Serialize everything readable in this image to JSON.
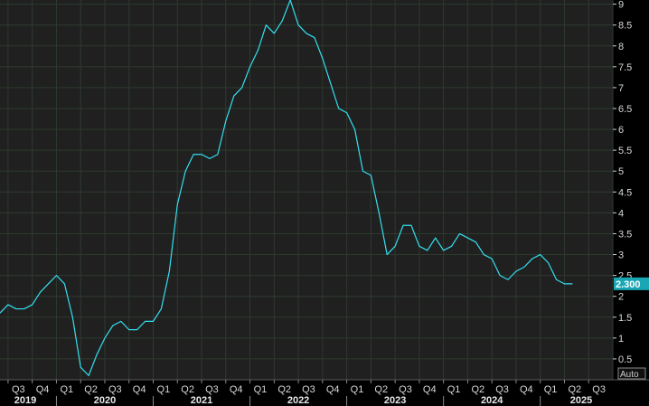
{
  "chart_data": {
    "type": "line",
    "xlabel": "",
    "ylabel": "",
    "ylim": [
      0,
      9.1
    ],
    "yticks": [
      0.5,
      1,
      1.5,
      2,
      2.5,
      3,
      3.5,
      4,
      4.5,
      5,
      5.5,
      6,
      6.5,
      7,
      7.5,
      8,
      8.5,
      9
    ],
    "ytick_labels": [
      "0.5",
      "1",
      "1.5",
      "2",
      "2.5",
      "3",
      "3.5",
      "4",
      "4.5",
      "5",
      "5.5",
      "6",
      "6.5",
      "7",
      "7.5",
      "8",
      "8.5",
      "9"
    ],
    "x_range": [
      "2019-06",
      "2025-10"
    ],
    "quarter_labels": [
      "Q3",
      "Q4",
      "Q1",
      "Q2",
      "Q3",
      "Q4",
      "Q1",
      "Q2",
      "Q3",
      "Q4",
      "Q1",
      "Q2",
      "Q3",
      "Q4",
      "Q1",
      "Q2",
      "Q3",
      "Q4",
      "Q1",
      "Q2",
      "Q3",
      "Q4",
      "Q1",
      "Q2",
      "Q3"
    ],
    "year_labels": [
      "2019",
      "2020",
      "2021",
      "2022",
      "2023",
      "2024",
      "2025"
    ],
    "grid": true,
    "series": [
      {
        "color": "#33e0f0",
        "x": [
          "2019-06",
          "2019-07",
          "2019-08",
          "2019-09",
          "2019-10",
          "2019-11",
          "2019-12",
          "2020-01",
          "2020-02",
          "2020-03",
          "2020-04",
          "2020-05",
          "2020-06",
          "2020-07",
          "2020-08",
          "2020-09",
          "2020-10",
          "2020-11",
          "2020-12",
          "2021-01",
          "2021-02",
          "2021-03",
          "2021-04",
          "2021-05",
          "2021-06",
          "2021-07",
          "2021-08",
          "2021-09",
          "2021-10",
          "2021-11",
          "2021-12",
          "2022-01",
          "2022-02",
          "2022-03",
          "2022-04",
          "2022-05",
          "2022-06",
          "2022-07",
          "2022-08",
          "2022-09",
          "2022-10",
          "2022-11",
          "2022-12",
          "2023-01",
          "2023-02",
          "2023-03",
          "2023-04",
          "2023-05",
          "2023-06",
          "2023-07",
          "2023-08",
          "2023-09",
          "2023-10",
          "2023-11",
          "2023-12",
          "2024-01",
          "2024-02",
          "2024-03",
          "2024-04",
          "2024-05",
          "2024-06",
          "2024-07",
          "2024-08",
          "2024-09",
          "2024-10",
          "2024-11",
          "2024-12",
          "2025-01",
          "2025-02",
          "2025-03",
          "2025-04",
          "2025-05"
        ],
        "values": [
          1.6,
          1.8,
          1.7,
          1.7,
          1.8,
          2.1,
          2.3,
          2.5,
          2.3,
          1.5,
          0.3,
          0.1,
          0.6,
          1.0,
          1.3,
          1.4,
          1.2,
          1.2,
          1.4,
          1.4,
          1.7,
          2.6,
          4.2,
          5.0,
          5.4,
          5.4,
          5.3,
          5.4,
          6.2,
          6.8,
          7.0,
          7.5,
          7.9,
          8.5,
          8.3,
          8.6,
          9.1,
          8.5,
          8.3,
          8.2,
          7.7,
          7.1,
          6.5,
          6.4,
          6.0,
          5.0,
          4.9,
          4.0,
          3.0,
          3.2,
          3.7,
          3.7,
          3.2,
          3.1,
          3.4,
          3.1,
          3.2,
          3.5,
          3.4,
          3.3,
          3.0,
          2.9,
          2.5,
          2.4,
          2.6,
          2.7,
          2.9,
          3.0,
          2.8,
          2.4,
          2.3,
          2.3
        ]
      }
    ],
    "last_value_label": "2.300",
    "auto_button_label": "Auto"
  },
  "colors": {
    "background": "#202020",
    "grid": "#2e3a2e",
    "line": "#33e0f0",
    "last_label_bg": "#1aa7b5",
    "axis_text": "#d8d8d8"
  }
}
